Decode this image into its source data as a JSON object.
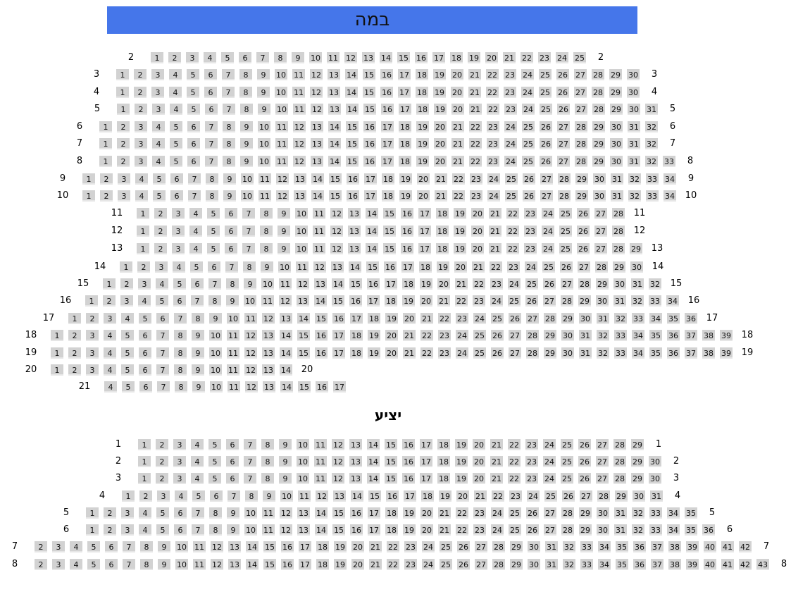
{
  "stage": {
    "label": "במה"
  },
  "sections": [
    {
      "title": "",
      "rows": [
        {
          "label": "2",
          "from": 1,
          "to": 25
        },
        {
          "label": "3",
          "from": 1,
          "to": 30
        },
        {
          "label": "4",
          "from": 1,
          "to": 30
        },
        {
          "label": "5",
          "from": 1,
          "to": 31
        },
        {
          "label": "6",
          "from": 1,
          "to": 32
        },
        {
          "label": "7",
          "from": 1,
          "to": 32
        },
        {
          "label": "8",
          "from": 1,
          "to": 33
        },
        {
          "label": "9",
          "from": 1,
          "to": 34
        },
        {
          "label": "10",
          "from": 1,
          "to": 34
        },
        {
          "label": "11",
          "from": 1,
          "to": 28
        },
        {
          "label": "12",
          "from": 1,
          "to": 28
        },
        {
          "label": "13",
          "from": 1,
          "to": 29
        },
        {
          "label": "14",
          "from": 1,
          "to": 30
        },
        {
          "label": "15",
          "from": 1,
          "to": 32
        },
        {
          "label": "16",
          "from": 1,
          "to": 34
        },
        {
          "label": "17",
          "from": 1,
          "to": 36
        },
        {
          "label": "18",
          "from": 1,
          "to": 39
        },
        {
          "label": "19",
          "from": 1,
          "to": 39
        },
        {
          "label": "20",
          "from": 1,
          "to": 14
        },
        {
          "label": "21",
          "from": 4,
          "to": 17,
          "no_right_label": true
        }
      ]
    },
    {
      "title": "יציע",
      "rows": [
        {
          "label": "1",
          "from": 1,
          "to": 29
        },
        {
          "label": "2",
          "from": 1,
          "to": 30
        },
        {
          "label": "3",
          "from": 1,
          "to": 30
        },
        {
          "label": "4",
          "from": 1,
          "to": 31
        },
        {
          "label": "5",
          "from": 1,
          "to": 35
        },
        {
          "label": "6",
          "from": 1,
          "to": 36
        },
        {
          "label": "7",
          "from": 2,
          "to": 42
        },
        {
          "label": "8",
          "from": 2,
          "to": 43
        }
      ]
    }
  ],
  "colors": {
    "stage": "#4576ea",
    "seat": "#d2d2d2"
  }
}
